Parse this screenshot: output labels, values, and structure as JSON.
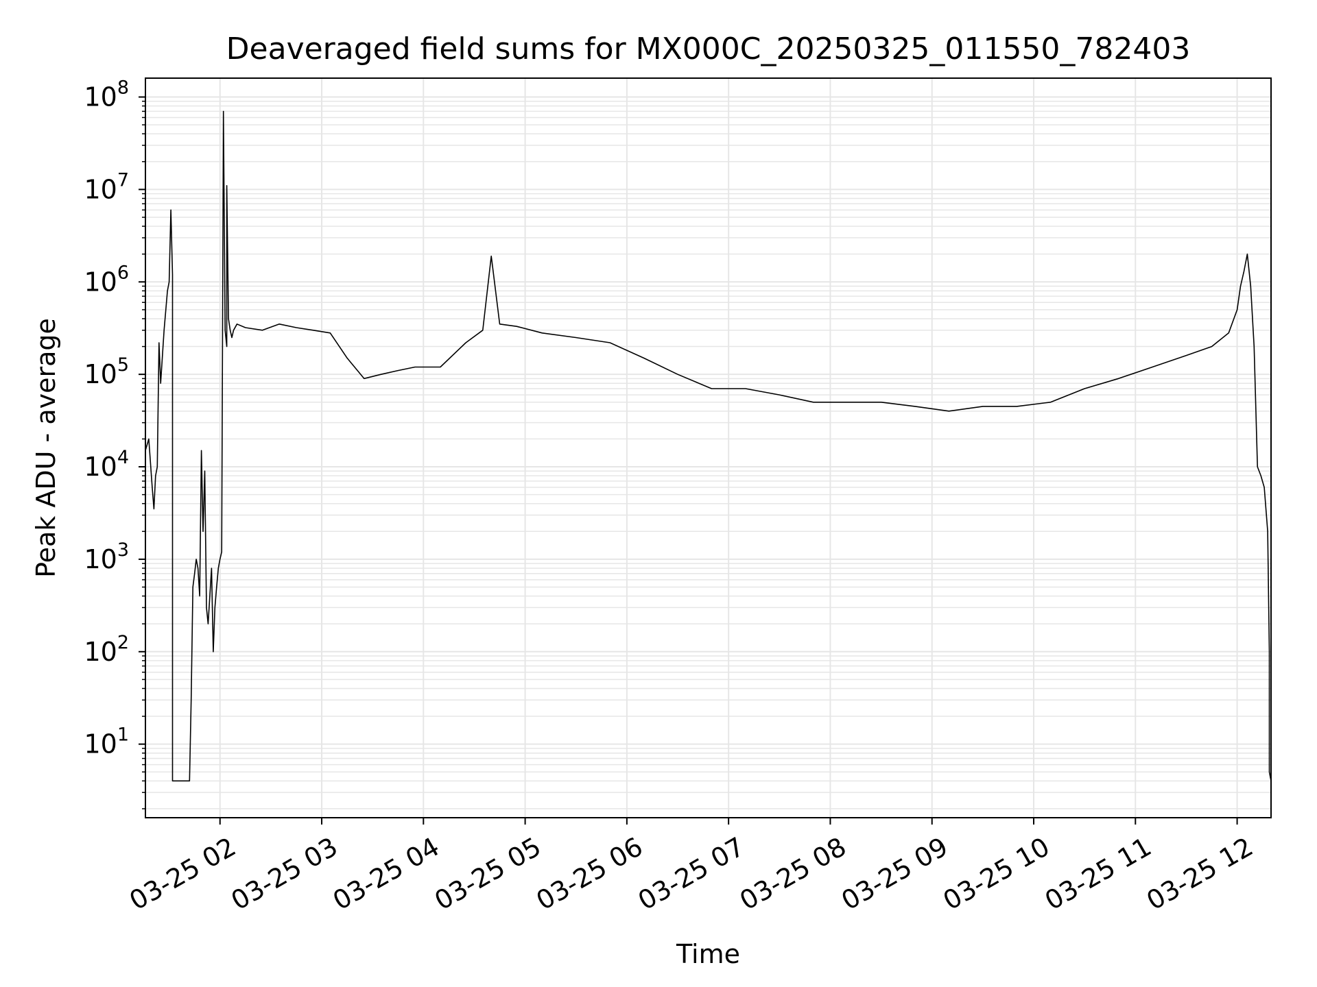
{
  "chart_data": {
    "type": "line",
    "title": "Deaveraged field sums for MX000C_20250325_011550_782403",
    "xlabel": "Time",
    "ylabel": "Peak ADU - average",
    "yscale": "log",
    "grid": true,
    "line_color": "#000000",
    "grid_color": "#e6e6e6",
    "xlim": [
      "2025-03-25 01:16",
      "2025-03-25 12:20"
    ],
    "ylim": [
      1.6,
      160000000
    ],
    "x_ticks": [
      {
        "t": "2025-03-25 02:00",
        "label": "03-25 02"
      },
      {
        "t": "2025-03-25 03:00",
        "label": "03-25 03"
      },
      {
        "t": "2025-03-25 04:00",
        "label": "03-25 04"
      },
      {
        "t": "2025-03-25 05:00",
        "label": "03-25 05"
      },
      {
        "t": "2025-03-25 06:00",
        "label": "03-25 06"
      },
      {
        "t": "2025-03-25 07:00",
        "label": "03-25 07"
      },
      {
        "t": "2025-03-25 08:00",
        "label": "03-25 08"
      },
      {
        "t": "2025-03-25 09:00",
        "label": "03-25 09"
      },
      {
        "t": "2025-03-25 10:00",
        "label": "03-25 10"
      },
      {
        "t": "2025-03-25 11:00",
        "label": "03-25 11"
      },
      {
        "t": "2025-03-25 12:00",
        "label": "03-25 12"
      }
    ],
    "y_ticks": [
      {
        "value": 10,
        "base": "10",
        "exp": "1"
      },
      {
        "value": 100,
        "base": "10",
        "exp": "2"
      },
      {
        "value": 1000,
        "base": "10",
        "exp": "3"
      },
      {
        "value": 10000,
        "base": "10",
        "exp": "4"
      },
      {
        "value": 100000,
        "base": "10",
        "exp": "5"
      },
      {
        "value": 1000000,
        "base": "10",
        "exp": "6"
      },
      {
        "value": 10000000,
        "base": "10",
        "exp": "7"
      },
      {
        "value": 100000000,
        "base": "10",
        "exp": "8"
      }
    ],
    "series": [
      {
        "x": [
          "2025-03-25 01:16",
          "2025-03-25 01:18",
          "2025-03-25 01:20",
          "2025-03-25 01:21",
          "2025-03-25 01:22",
          "2025-03-25 01:23",
          "2025-03-25 01:24",
          "2025-03-25 01:25",
          "2025-03-25 01:27",
          "2025-03-25 01:29",
          "2025-03-25 01:30",
          "2025-03-25 01:31",
          "2025-03-25 01:32",
          "2025-03-25 01:32",
          "2025-03-25 01:33",
          "2025-03-25 01:35",
          "2025-03-25 01:42",
          "2025-03-25 01:43",
          "2025-03-25 01:44",
          "2025-03-25 01:45",
          "2025-03-25 01:46",
          "2025-03-25 01:47",
          "2025-03-25 01:48",
          "2025-03-25 01:49",
          "2025-03-25 01:50",
          "2025-03-25 01:51",
          "2025-03-25 01:52",
          "2025-03-25 01:53",
          "2025-03-25 01:54",
          "2025-03-25 01:55",
          "2025-03-25 01:56",
          "2025-03-25 01:57",
          "2025-03-25 01:58",
          "2025-03-25 01:59",
          "2025-03-25 02:00",
          "2025-03-25 02:01",
          "2025-03-25 02:02",
          "2025-03-25 02:03",
          "2025-03-25 02:04",
          "2025-03-25 02:04",
          "2025-03-25 02:05",
          "2025-03-25 02:06",
          "2025-03-25 02:07",
          "2025-03-25 02:08",
          "2025-03-25 02:10",
          "2025-03-25 02:15",
          "2025-03-25 02:25",
          "2025-03-25 02:35",
          "2025-03-25 02:45",
          "2025-03-25 02:55",
          "2025-03-25 03:05",
          "2025-03-25 03:15",
          "2025-03-25 03:25",
          "2025-03-25 03:35",
          "2025-03-25 03:45",
          "2025-03-25 03:55",
          "2025-03-25 04:10",
          "2025-03-25 04:25",
          "2025-03-25 04:35",
          "2025-03-25 04:40",
          "2025-03-25 04:45",
          "2025-03-25 04:55",
          "2025-03-25 05:10",
          "2025-03-25 05:30",
          "2025-03-25 05:50",
          "2025-03-25 06:10",
          "2025-03-25 06:30",
          "2025-03-25 06:50",
          "2025-03-25 07:10",
          "2025-03-25 07:30",
          "2025-03-25 07:50",
          "2025-03-25 08:10",
          "2025-03-25 08:30",
          "2025-03-25 08:50",
          "2025-03-25 09:10",
          "2025-03-25 09:30",
          "2025-03-25 09:50",
          "2025-03-25 10:10",
          "2025-03-25 10:30",
          "2025-03-25 10:50",
          "2025-03-25 11:10",
          "2025-03-25 11:30",
          "2025-03-25 11:45",
          "2025-03-25 11:55",
          "2025-03-25 12:00",
          "2025-03-25 12:02",
          "2025-03-25 12:04",
          "2025-03-25 12:06",
          "2025-03-25 12:08",
          "2025-03-25 12:10",
          "2025-03-25 12:12",
          "2025-03-25 12:14",
          "2025-03-25 12:16",
          "2025-03-25 12:18",
          "2025-03-25 12:19",
          "2025-03-25 12:19",
          "2025-03-25 12:20"
        ],
        "y": [
          15000,
          20000,
          6000,
          3500,
          8000,
          10000,
          220000,
          80000,
          300000,
          800000,
          1000000,
          6000000,
          1200000,
          4,
          4,
          4,
          4,
          30,
          500,
          700,
          1000,
          800,
          400,
          15000,
          2000,
          9000,
          300,
          200,
          400,
          800,
          100,
          300,
          500,
          800,
          1000,
          1200,
          70000000,
          300000,
          200000,
          11000000,
          400000,
          300000,
          250000,
          300000,
          350000,
          320000,
          300000,
          350000,
          320000,
          300000,
          280000,
          150000,
          90000,
          100000,
          110000,
          120000,
          120000,
          220000,
          300000,
          1900000,
          350000,
          330000,
          280000,
          250000,
          220000,
          150000,
          100000,
          70000,
          70000,
          60000,
          50000,
          50000,
          50000,
          45000,
          40000,
          45000,
          45000,
          50000,
          70000,
          90000,
          120000,
          160000,
          200000,
          280000,
          500000,
          900000,
          1300000,
          2000000,
          900000,
          200000,
          10000,
          8000,
          6000,
          2000,
          100,
          5,
          4
        ]
      }
    ]
  }
}
